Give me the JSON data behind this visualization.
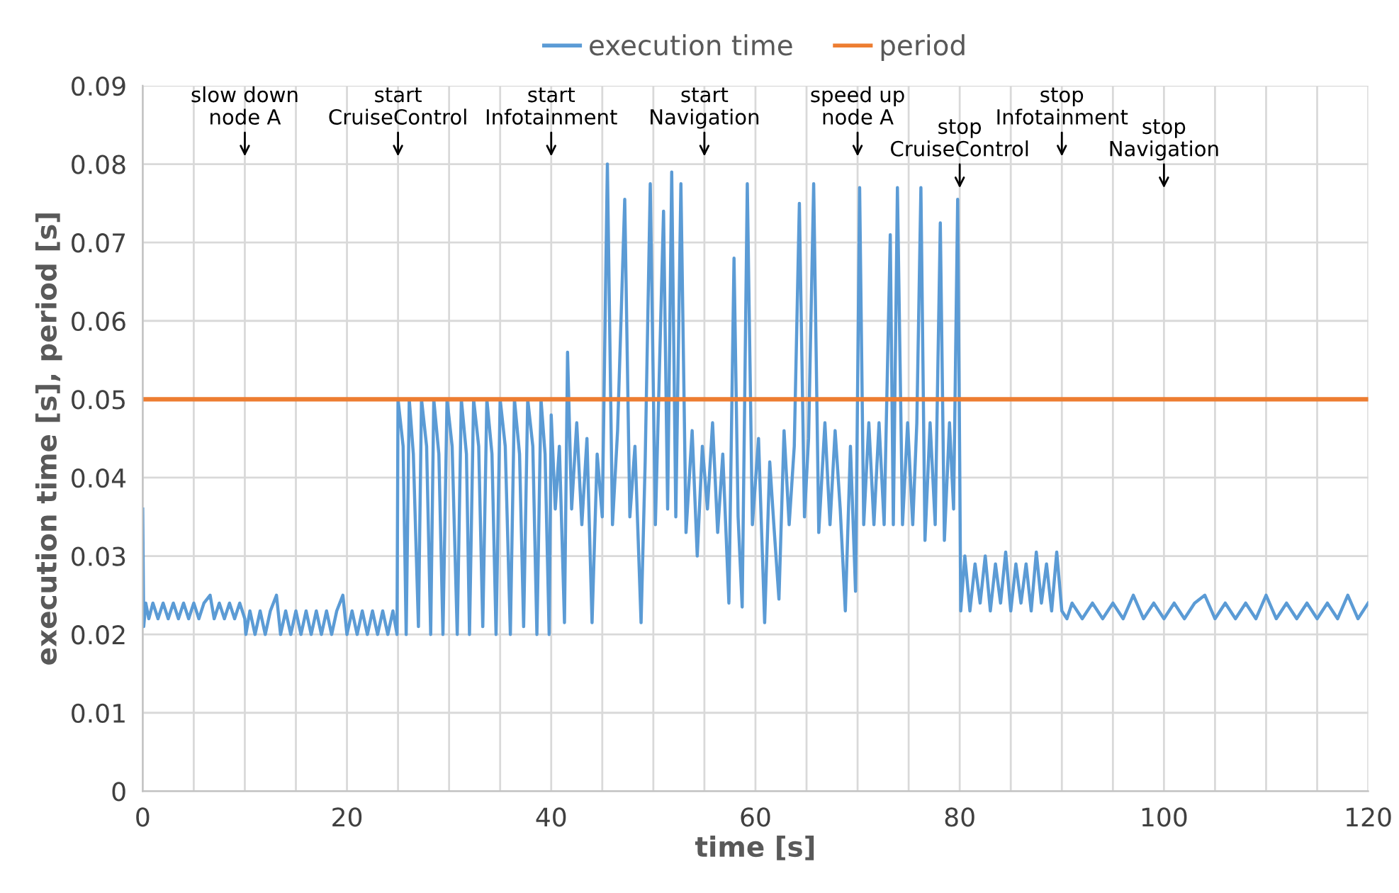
{
  "chart_data": {
    "type": "line",
    "xlabel": "time [s]",
    "ylabel": "execution time [s], period [s]",
    "xlim": [
      0,
      120
    ],
    "ylim": [
      0,
      0.09
    ],
    "xticks": [
      0,
      {
        "value": 5,
        "label": null
      },
      {
        "value": 10,
        "label": null
      },
      {
        "value": 15,
        "label": null
      },
      20,
      {
        "value": 25,
        "label": null
      },
      {
        "value": 30,
        "label": null
      },
      {
        "value": 35,
        "label": null
      },
      40,
      {
        "value": 45,
        "label": null
      },
      {
        "value": 50,
        "label": null
      },
      {
        "value": 55,
        "label": null
      },
      60,
      {
        "value": 65,
        "label": null
      },
      {
        "value": 70,
        "label": null
      },
      {
        "value": 75,
        "label": null
      },
      80,
      {
        "value": 85,
        "label": null
      },
      {
        "value": 90,
        "label": null
      },
      {
        "value": 95,
        "label": null
      },
      100,
      {
        "value": 105,
        "label": null
      },
      {
        "value": 110,
        "label": null
      },
      {
        "value": 115,
        "label": null
      },
      120
    ],
    "yticks": [
      0,
      0.01,
      0.02,
      0.03,
      0.04,
      0.05,
      0.06,
      0.07,
      0.08,
      0.09
    ],
    "grid": true,
    "legend": "top",
    "marker": "none",
    "line_style": "solid",
    "series": [
      {
        "name": "execution time",
        "color": "#5b9bd5",
        "x": [
          0,
          0.1,
          0.3,
          0.6,
          1.0,
          1.5,
          2.0,
          2.5,
          3.0,
          3.5,
          4,
          4.5,
          5,
          5.5,
          6,
          6.6,
          7,
          7.5,
          8,
          8.5,
          9,
          9.5,
          10,
          10.1,
          10.5,
          11,
          11.5,
          12,
          12.5,
          13.1,
          13.5,
          14,
          14.5,
          15,
          15.5,
          16,
          16.5,
          17,
          17.5,
          18,
          18.5,
          19,
          19.6,
          20,
          20.5,
          21,
          21.5,
          22,
          22.5,
          23,
          23.5,
          24,
          24.5,
          24.9,
          25,
          25.5,
          25.8,
          26.1,
          26.5,
          27,
          27.3,
          27.8,
          28.2,
          28.5,
          29,
          29.4,
          29.8,
          30.3,
          30.8,
          31.2,
          31.7,
          32,
          32.4,
          32.9,
          33.3,
          33.7,
          34.2,
          34.6,
          35,
          35.5,
          36,
          36.4,
          36.9,
          37.3,
          37.7,
          38.2,
          38.6,
          39,
          39.4,
          39.8,
          40,
          40.4,
          40.8,
          41.3,
          41.6,
          42,
          42.5,
          43,
          43.5,
          44,
          44.5,
          45,
          45.5,
          46,
          46.5,
          47.2,
          47.7,
          48.2,
          48.8,
          49.2,
          49.7,
          50.2,
          51.0,
          51.4,
          51.8,
          52.2,
          52.7,
          53.2,
          53.8,
          54.3,
          54.8,
          55.3,
          55.8,
          56.3,
          56.8,
          57.4,
          57.9,
          58.3,
          58.7,
          59.2,
          59.7,
          60.3,
          60.9,
          61.4,
          61.8,
          62.3,
          62.8,
          63.3,
          63.8,
          64.3,
          64.8,
          65.2,
          65.7,
          66.2,
          66.8,
          67.3,
          67.8,
          68.3,
          68.8,
          69.3,
          69.8,
          70.2,
          70.6,
          71.1,
          71.6,
          72.1,
          72.6,
          73.2,
          73.5,
          73.9,
          74.4,
          74.9,
          75.4,
          75.8,
          76.2,
          76.6,
          77.1,
          77.6,
          78.1,
          78.5,
          79,
          79.4,
          79.8,
          80.0,
          80.1,
          80.5,
          81,
          81.5,
          82,
          82.5,
          83,
          83.5,
          84,
          84.5,
          85,
          85.5,
          86,
          86.5,
          87,
          87.5,
          88,
          88.5,
          89,
          89.5,
          90,
          90.5,
          91,
          92,
          93,
          94,
          95,
          96,
          97,
          98,
          99,
          100,
          101,
          102,
          103,
          104,
          105,
          106,
          107,
          108,
          109,
          110,
          111,
          112,
          113,
          114,
          115,
          116,
          117,
          118,
          119,
          120
        ],
        "values": [
          0.036,
          0.021,
          0.024,
          0.022,
          0.024,
          0.022,
          0.024,
          0.022,
          0.024,
          0.022,
          0.024,
          0.022,
          0.024,
          0.022,
          0.024,
          0.025,
          0.022,
          0.024,
          0.022,
          0.024,
          0.022,
          0.024,
          0.022,
          0.02,
          0.023,
          0.02,
          0.023,
          0.02,
          0.023,
          0.025,
          0.02,
          0.023,
          0.02,
          0.023,
          0.02,
          0.023,
          0.02,
          0.023,
          0.02,
          0.023,
          0.02,
          0.023,
          0.025,
          0.02,
          0.023,
          0.02,
          0.023,
          0.02,
          0.023,
          0.02,
          0.023,
          0.02,
          0.023,
          0.02,
          0.05,
          0.044,
          0.02,
          0.05,
          0.043,
          0.021,
          0.05,
          0.044,
          0.02,
          0.05,
          0.043,
          0.02,
          0.05,
          0.044,
          0.02,
          0.05,
          0.043,
          0.02,
          0.05,
          0.044,
          0.021,
          0.05,
          0.043,
          0.02,
          0.05,
          0.044,
          0.02,
          0.05,
          0.043,
          0.021,
          0.05,
          0.044,
          0.02,
          0.05,
          0.043,
          0.02,
          0.048,
          0.036,
          0.044,
          0.0215,
          0.056,
          0.036,
          0.047,
          0.034,
          0.045,
          0.0215,
          0.043,
          0.035,
          0.08,
          0.034,
          0.046,
          0.0755,
          0.035,
          0.044,
          0.0215,
          0.042,
          0.0775,
          0.034,
          0.074,
          0.036,
          0.079,
          0.035,
          0.0775,
          0.033,
          0.046,
          0.03,
          0.044,
          0.036,
          0.047,
          0.033,
          0.043,
          0.024,
          0.068,
          0.035,
          0.0235,
          0.0775,
          0.034,
          0.045,
          0.0215,
          0.042,
          0.034,
          0.0245,
          0.046,
          0.034,
          0.044,
          0.075,
          0.035,
          0.045,
          0.0775,
          0.033,
          0.047,
          0.034,
          0.046,
          0.036,
          0.023,
          0.044,
          0.0255,
          0.077,
          0.034,
          0.047,
          0.034,
          0.047,
          0.034,
          0.071,
          0.034,
          0.077,
          0.034,
          0.047,
          0.034,
          0.047,
          0.077,
          0.032,
          0.047,
          0.034,
          0.0725,
          0.032,
          0.047,
          0.036,
          0.0755,
          0.042,
          0.023,
          0.03,
          0.023,
          0.029,
          0.024,
          0.03,
          0.023,
          0.029,
          0.024,
          0.0305,
          0.023,
          0.029,
          0.024,
          0.029,
          0.023,
          0.0305,
          0.024,
          0.029,
          0.023,
          0.0305,
          0.023,
          0.022,
          0.024,
          0.022,
          0.024,
          0.022,
          0.024,
          0.022,
          0.025,
          0.022,
          0.024,
          0.022,
          0.024,
          0.022,
          0.024,
          0.025,
          0.022,
          0.024,
          0.022,
          0.024,
          0.022,
          0.025,
          0.022,
          0.024,
          0.022,
          0.024,
          0.022,
          0.024,
          0.022,
          0.025,
          0.022,
          0.024
        ]
      },
      {
        "name": "period",
        "color": "#ed7d31",
        "x": [
          0,
          120
        ],
        "values": [
          0.05,
          0.05
        ]
      }
    ],
    "annotations": [
      {
        "text": "slow down\nnode A",
        "x": 10
      },
      {
        "text": "start\nCruiseControl",
        "x": 25
      },
      {
        "text": "start\nInfotainment",
        "x": 40
      },
      {
        "text": "start\nNavigation",
        "x": 55
      },
      {
        "text": "speed up\nnode A",
        "x": 70
      },
      {
        "text": "stop\nCruiseControl",
        "x": 80
      },
      {
        "text": "stop\nInfotainment",
        "x": 90
      },
      {
        "text": "stop\nNavigation",
        "x": 100
      }
    ]
  }
}
